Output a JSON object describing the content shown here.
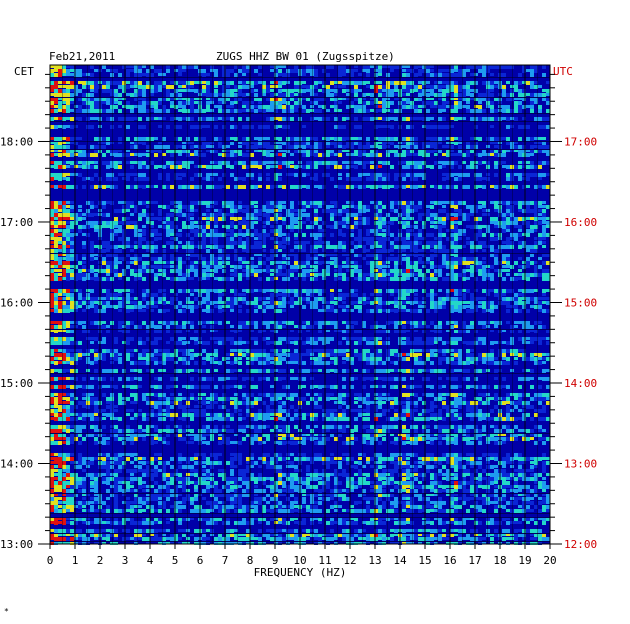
{
  "chart_data": {
    "type": "heatmap",
    "title": "ZUGS HHZ BW 01 (Zugsspitze)",
    "date": "Feb21,2011",
    "xlabel": "FREQUENCY (HZ)",
    "xlim": [
      0,
      20
    ],
    "x_ticks": [
      "0",
      "1",
      "2",
      "3",
      "4",
      "5",
      "6",
      "7",
      "8",
      "9",
      "10",
      "11",
      "12",
      "13",
      "14",
      "15",
      "16",
      "17",
      "18",
      "19",
      "20"
    ],
    "left_axis": {
      "label": "CET",
      "ticks": [
        {
          "label": "18:00",
          "hour": 18
        },
        {
          "label": "17:00",
          "hour": 17
        },
        {
          "label": "16:00",
          "hour": 16
        },
        {
          "label": "15:00",
          "hour": 15
        },
        {
          "label": "14:00",
          "hour": 14
        },
        {
          "label": "13:00",
          "hour": 13
        }
      ],
      "range_hours": [
        13,
        18.95
      ]
    },
    "right_axis": {
      "label": "UTC",
      "ticks": [
        {
          "label": "17:00",
          "hour": 17
        },
        {
          "label": "16:00",
          "hour": 16
        },
        {
          "label": "15:00",
          "hour": 15
        },
        {
          "label": "14:00",
          "hour": 14
        },
        {
          "label": "13:00",
          "hour": 13
        },
        {
          "label": "12:00",
          "hour": 12
        }
      ],
      "range_hours": [
        12,
        17.95
      ]
    },
    "spectral_lines_hz": [
      0.4,
      9.1,
      13.1,
      14.2,
      16.1
    ],
    "colors": {
      "background": "#0000a8",
      "grid": "#000000",
      "low": "#0a26d6",
      "mid": "#1e9cf0",
      "high": "#23d7c8",
      "hot": "#e0e020",
      "peak": "#e01010",
      "utc_text": "#d00000",
      "frame": "#000000"
    }
  },
  "footer_mark": "*"
}
